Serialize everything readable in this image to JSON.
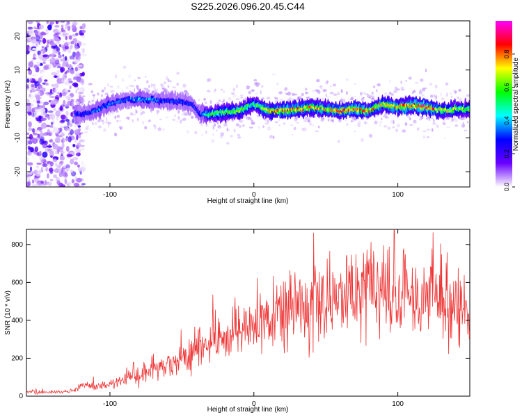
{
  "title": "S225.2026.096.20.45.C44",
  "chart_data": [
    {
      "type": "heatmap",
      "xlabel": "Height of straight line (km)",
      "ylabel": "Frequency (Hz)",
      "xlim": [
        -158,
        150
      ],
      "ylim": [
        -24.5,
        24.5
      ],
      "x_ticks": [
        -100,
        0,
        100
      ],
      "y_ticks": [
        20,
        10,
        0,
        -10,
        -20
      ],
      "colorbar": {
        "label": "Normalized spectral amplitude",
        "range": [
          0,
          1
        ],
        "ticks": [
          0.0,
          0.2,
          0.4,
          0.6,
          0.8
        ],
        "tick_labels": [
          "0.0",
          "0.2",
          "0.4",
          "0.6",
          "0.8"
        ],
        "colormap": [
          "#ffffff",
          "#6a00ff",
          "#0000ff",
          "#00ffff",
          "#00ff00",
          "#ffff00",
          "#ff0000",
          "#ff00ff"
        ]
      },
      "ridge": {
        "x": [
          -118,
          -110,
          -100,
          -90,
          -80,
          -70,
          -60,
          -50,
          -43,
          -38,
          -30,
          -20,
          -10,
          -5,
          0,
          10,
          20,
          30,
          40,
          50,
          60,
          70,
          80,
          90,
          100,
          110,
          120,
          130,
          140,
          148
        ],
        "freq": [
          -3,
          -2,
          0,
          1,
          1.5,
          1,
          1,
          0.5,
          0,
          -3,
          -3,
          -2.5,
          -2,
          -1,
          0,
          -2,
          -2,
          -1.5,
          -1,
          -1.5,
          -2,
          -1.5,
          -2,
          0,
          -1,
          -0.5,
          -1,
          -2,
          -1.5,
          -1.5
        ],
        "amplitude": [
          0.3,
          0.35,
          0.35,
          0.3,
          0.4,
          0.35,
          0.3,
          0.3,
          0.3,
          0.3,
          0.55,
          0.6,
          0.65,
          0.6,
          0.5,
          0.75,
          0.8,
          0.8,
          0.75,
          0.7,
          0.8,
          0.85,
          0.75,
          0.7,
          0.75,
          0.8,
          0.85,
          0.7,
          0.65,
          0.6
        ]
      },
      "noise_region_x": [
        -158,
        -118
      ]
    },
    {
      "type": "line",
      "xlabel": "Height of straight line (km)",
      "ylabel": "SNR (10 * v/v)",
      "xlim": [
        -158,
        150
      ],
      "ylim": [
        0,
        880
      ],
      "x_ticks": [
        -100,
        0,
        100
      ],
      "y_ticks": [
        0,
        200,
        400,
        600,
        800
      ],
      "color": "#ee3333",
      "series": [
        {
          "x": [
            -158,
            -140,
            -125,
            -119,
            -110,
            -100,
            -90,
            -80,
            -70,
            -60,
            -50,
            -40,
            -30,
            -20,
            -10,
            0,
            10,
            20,
            30,
            40,
            50,
            60,
            70,
            80,
            90,
            100,
            110,
            120,
            130,
            140,
            150
          ],
          "values": [
            20,
            20,
            25,
            60,
            50,
            60,
            90,
            110,
            130,
            160,
            200,
            230,
            280,
            320,
            360,
            390,
            420,
            450,
            480,
            500,
            500,
            510,
            520,
            530,
            540,
            550,
            540,
            530,
            520,
            480,
            430
          ]
        }
      ]
    }
  ]
}
